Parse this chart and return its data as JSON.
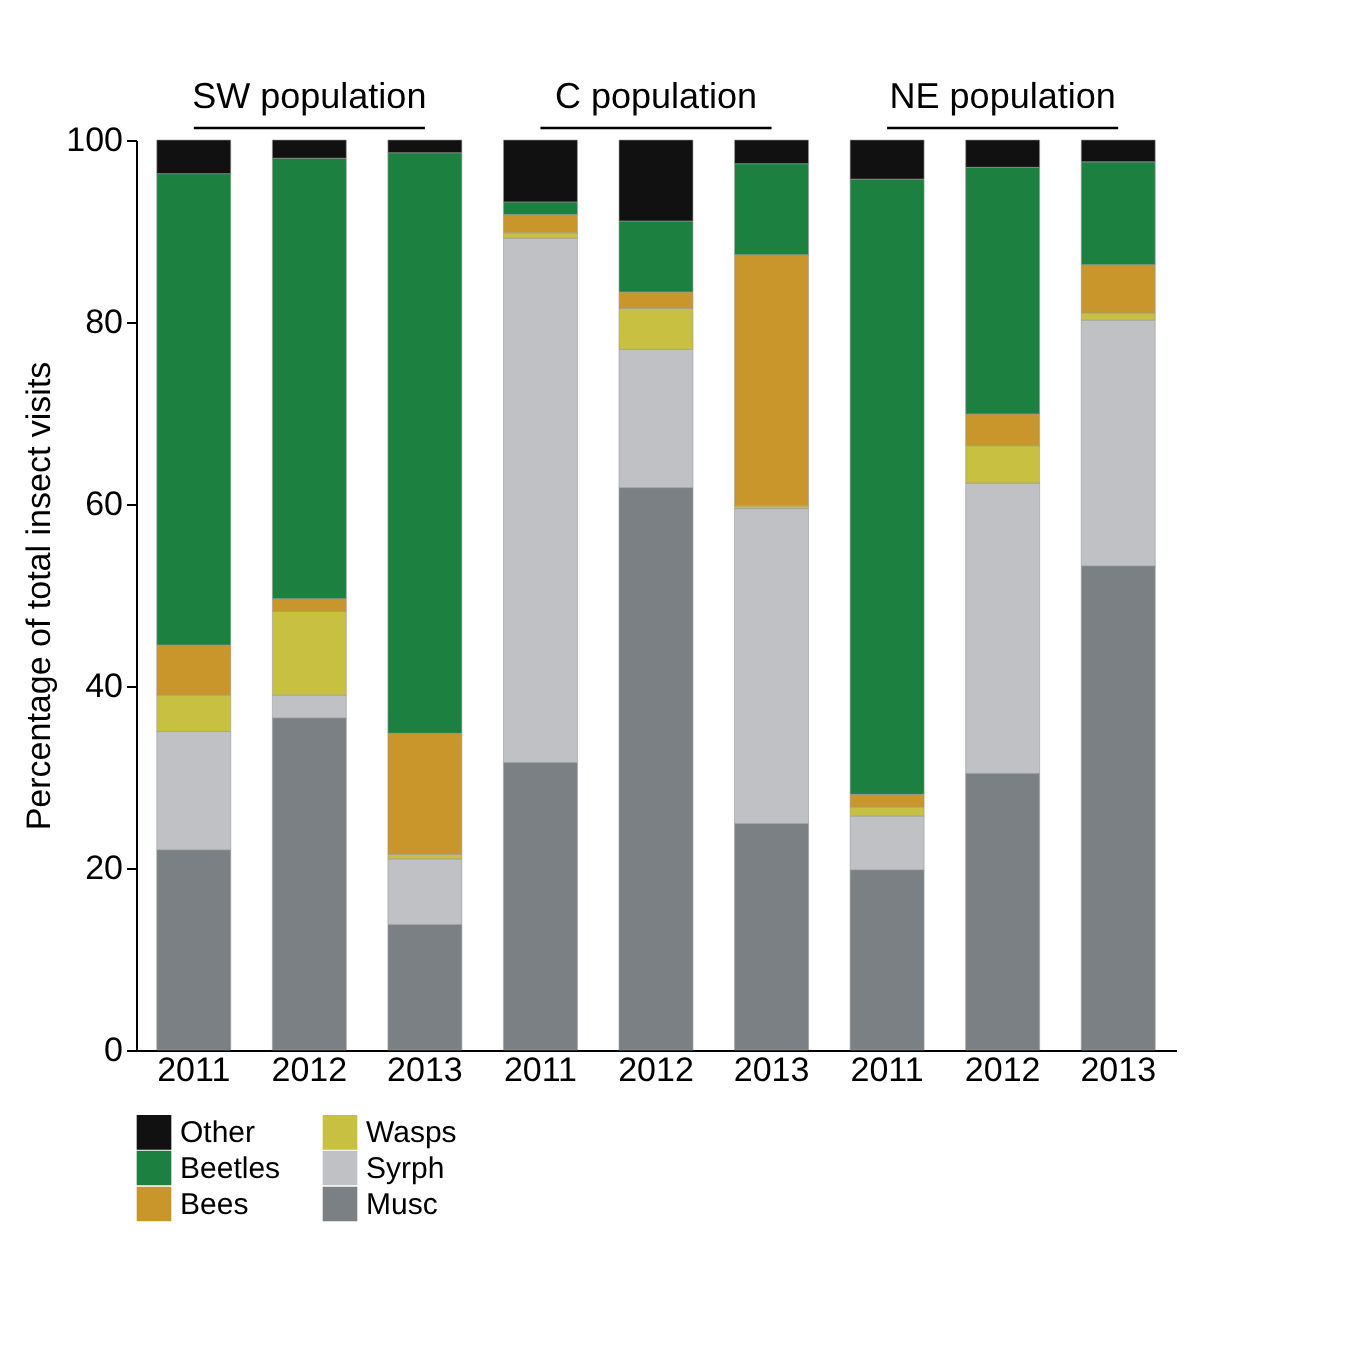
{
  "chart_data": {
    "type": "bar",
    "stacked": true,
    "ylabel": "Percentage of total insect visits",
    "categories": [
      "2011",
      "2012",
      "2013",
      "2011",
      "2012",
      "2013",
      "2011",
      "2012",
      "2013"
    ],
    "annotations": [
      "SW population",
      "C population",
      "NE population"
    ],
    "series": [
      {
        "name": "Musc",
        "color": "#7b8084",
        "values": [
          22,
          36.5,
          13.8,
          31.6,
          61.8,
          24.9,
          19.8,
          30.4,
          53.2
        ]
      },
      {
        "name": "Syrph",
        "color": "#c0c1c4",
        "values": [
          13,
          2.5,
          7.2,
          57.6,
          15.2,
          34.6,
          5.9,
          31.9,
          27
        ]
      },
      {
        "name": "Wasps",
        "color": "#c8c040",
        "values": [
          4,
          9.2,
          0.5,
          0.6,
          4.5,
          0.3,
          1,
          4.1,
          0.8
        ]
      },
      {
        "name": "Bees",
        "color": "#c8962a",
        "values": [
          5.5,
          1.4,
          13.3,
          2,
          1.8,
          27.6,
          1.4,
          3.5,
          5.3
        ]
      },
      {
        "name": "Beetles",
        "color": "#1c8040",
        "values": [
          51.8,
          48.4,
          63.8,
          1.4,
          7.8,
          10,
          67.6,
          27.1,
          11.3
        ]
      },
      {
        "name": "Other",
        "color": "#111111",
        "values": [
          3.7,
          2,
          1.4,
          6.8,
          8.9,
          2.6,
          4.3,
          3,
          2.4
        ]
      }
    ],
    "ylim": [
      0,
      100
    ],
    "yticks": [
      0,
      20,
      40,
      60,
      80,
      100
    ],
    "grid": false,
    "legend": "bottom"
  }
}
